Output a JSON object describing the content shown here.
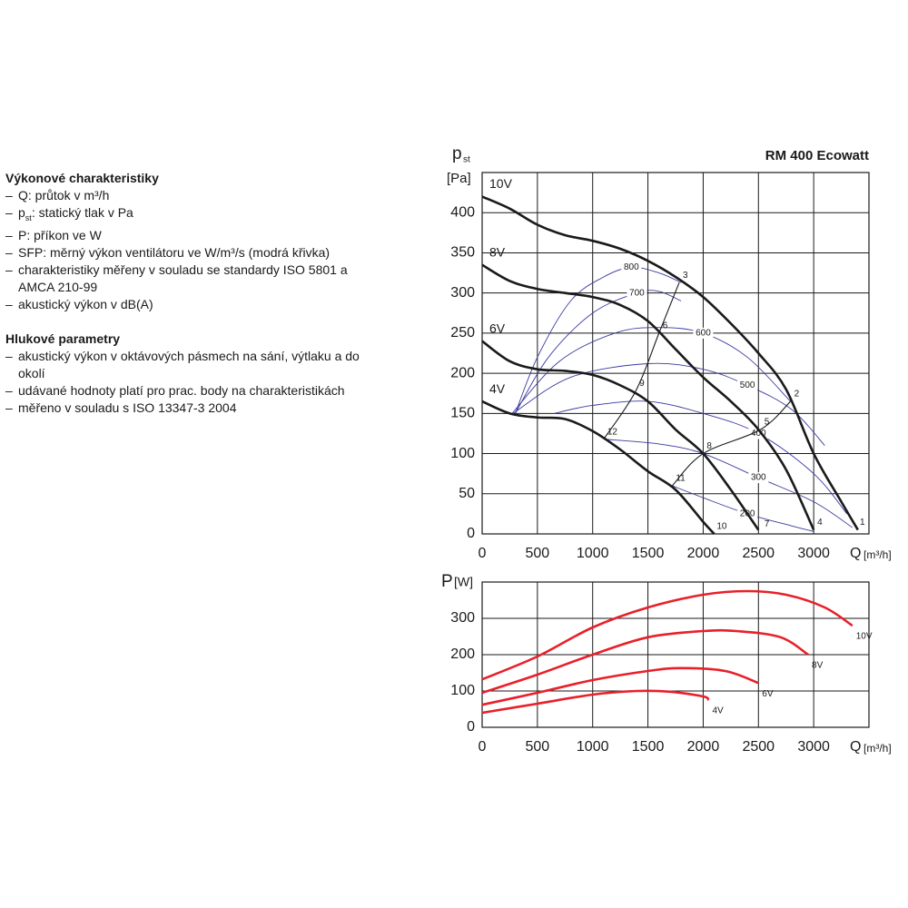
{
  "text": {
    "heading1": "Výkonové charakteristiky",
    "items1": [
      {
        "text": "Q: průtok v m³/h"
      },
      {
        "main": "p",
        "sub": "st",
        "rest": ": statický tlak v Pa"
      },
      {
        "text": "P: příkon ve W"
      },
      {
        "text": "SFP: měrný výkon ventilátoru ve W/m³/s (modrá křivka)"
      },
      {
        "text": "charakteristiky měřeny v souladu se standardy ISO 5801 a AMCA 210-99"
      },
      {
        "text": "akustický výkon v dB(A)"
      }
    ],
    "heading2": "Hlukové parametry",
    "items2": [
      {
        "text": "akustický výkon v oktávových pásmech na sání, výtlaku a do okolí"
      },
      {
        "text": "udávané hodnoty platí pro prac. body na charakteristikách"
      },
      {
        "text": "měřeno v souladu s ISO 13347-3 2004"
      }
    ]
  },
  "chart_data": [
    {
      "type": "line",
      "title": "RM 400 Ecowatt",
      "ylabel": "p",
      "ylabel_sub": "st",
      "yunit": "[Pa]",
      "xlabel": "Q",
      "xunit": "[m³/h]",
      "xlim": [
        0,
        3500
      ],
      "ylim": [
        0,
        450
      ],
      "xticks": [
        0,
        500,
        1000,
        1500,
        2000,
        2500,
        3000
      ],
      "yticks": [
        0,
        50,
        100,
        150,
        200,
        250,
        300,
        350,
        400
      ],
      "grid": true,
      "series": [
        {
          "name": "10V",
          "color": "#1a1a1a",
          "x": [
            0,
            250,
            500,
            750,
            1000,
            1250,
            1500,
            1750,
            2000,
            2250,
            2500,
            2750,
            3000,
            3250,
            3400
          ],
          "values": [
            420,
            405,
            385,
            372,
            365,
            355,
            340,
            320,
            295,
            262,
            225,
            180,
            100,
            40,
            5
          ]
        },
        {
          "name": "8V",
          "color": "#1a1a1a",
          "x": [
            0,
            250,
            500,
            750,
            1000,
            1250,
            1500,
            1750,
            2000,
            2250,
            2500,
            2750,
            3000
          ],
          "values": [
            335,
            315,
            305,
            300,
            295,
            285,
            265,
            230,
            195,
            165,
            130,
            80,
            5
          ]
        },
        {
          "name": "6V",
          "color": "#1a1a1a",
          "x": [
            0,
            250,
            500,
            750,
            1000,
            1250,
            1500,
            1750,
            2000,
            2250,
            2500
          ],
          "values": [
            240,
            215,
            205,
            203,
            198,
            185,
            165,
            130,
            100,
            55,
            5
          ]
        },
        {
          "name": "4V",
          "color": "#1a1a1a",
          "x": [
            0,
            250,
            500,
            750,
            1000,
            1250,
            1500,
            1750,
            2000,
            2100
          ],
          "values": [
            165,
            150,
            145,
            143,
            128,
            105,
            78,
            55,
            15,
            0
          ]
        }
      ],
      "sfp_curves": [
        {
          "name": "800",
          "color": "#3a3aa0",
          "x": [
            300,
            500,
            800,
            1100,
            1350,
            1600,
            1800
          ],
          "values": [
            150,
            220,
            290,
            320,
            332,
            325,
            313
          ]
        },
        {
          "name": "700",
          "color": "#3a3aa0",
          "x": [
            300,
            600,
            1000,
            1400,
            1600,
            1800
          ],
          "values": [
            150,
            220,
            275,
            300,
            302,
            290
          ]
        },
        {
          "name": "600",
          "color": "#3a3aa0",
          "x": [
            270,
            700,
            1200,
            1600,
            2000,
            2400,
            2790
          ],
          "values": [
            150,
            215,
            250,
            257,
            250,
            220,
            165
          ]
        },
        {
          "name": "500",
          "color": "#3a3aa0",
          "x": [
            280,
            800,
            1500,
            2000,
            2400,
            2800,
            3100
          ],
          "values": [
            150,
            195,
            212,
            205,
            185,
            155,
            110
          ]
        },
        {
          "name": "400",
          "color": "#3a3aa0",
          "x": [
            650,
            1000,
            1500,
            2000,
            2500,
            3000,
            3300
          ],
          "values": [
            150,
            160,
            165,
            150,
            125,
            75,
            25
          ]
        },
        {
          "name": "300",
          "color": "#3a3aa0",
          "x": [
            1100,
            1600,
            2000,
            2500,
            3000,
            3350
          ],
          "values": [
            118,
            112,
            100,
            70,
            40,
            8
          ]
        },
        {
          "name": "200",
          "color": "#3a3aa0",
          "x": [
            1720,
            2000,
            2400,
            2800,
            3000
          ],
          "values": [
            60,
            45,
            25,
            10,
            3
          ]
        }
      ],
      "system_curves": [
        {
          "color": "#1a1a1a",
          "x": [
            1100,
            1390,
            1600,
            1783
          ],
          "values": [
            118,
            178,
            250,
            313
          ]
        },
        {
          "color": "#1a1a1a",
          "x": [
            1720,
            2000,
            2520,
            2790
          ],
          "values": [
            60,
            100,
            130,
            165
          ]
        }
      ],
      "annotations": [
        {
          "label": "1",
          "x": 3385,
          "y": 5
        },
        {
          "label": "2",
          "x": 2790,
          "y": 165
        },
        {
          "label": "3",
          "x": 1783,
          "y": 313
        },
        {
          "label": "4",
          "x": 3000,
          "y": 5
        },
        {
          "label": "5",
          "x": 2520,
          "y": 130
        },
        {
          "label": "6",
          "x": 1600,
          "y": 250
        },
        {
          "label": "7",
          "x": 2520,
          "y": 3
        },
        {
          "label": "8",
          "x": 2000,
          "y": 100
        },
        {
          "label": "9",
          "x": 1390,
          "y": 178
        },
        {
          "label": "10",
          "x": 2090,
          "y": 0
        },
        {
          "label": "11",
          "x": 1720,
          "y": 60
        },
        {
          "label": "12",
          "x": 1100,
          "y": 118
        }
      ]
    },
    {
      "type": "line",
      "ylabel": "P",
      "yunit": "[W]",
      "xlabel": "Q",
      "xunit": "[m³/h]",
      "xlim": [
        0,
        3500
      ],
      "ylim": [
        0,
        400
      ],
      "xticks": [
        0,
        500,
        1000,
        1500,
        2000,
        2500,
        3000
      ],
      "yticks": [
        0,
        100,
        200,
        300
      ],
      "grid": true,
      "series": [
        {
          "name": "10V",
          "color": "#e8202a",
          "x": [
            0,
            500,
            1000,
            1500,
            2000,
            2400,
            2750,
            3100,
            3350
          ],
          "values": [
            132,
            195,
            275,
            330,
            365,
            375,
            365,
            330,
            280
          ]
        },
        {
          "name": "8V",
          "color": "#e8202a",
          "x": [
            0,
            500,
            1000,
            1500,
            2000,
            2300,
            2700,
            2950
          ],
          "values": [
            95,
            145,
            200,
            248,
            265,
            265,
            248,
            200
          ]
        },
        {
          "name": "6V",
          "color": "#e8202a",
          "x": [
            0,
            500,
            1000,
            1500,
            1800,
            2200,
            2500
          ],
          "values": [
            62,
            95,
            130,
            155,
            163,
            155,
            122
          ]
        },
        {
          "name": "4V",
          "color": "#e8202a",
          "x": [
            0,
            500,
            1000,
            1400,
            1700,
            2000,
            2050
          ],
          "values": [
            40,
            65,
            90,
            100,
            98,
            85,
            75
          ]
        }
      ]
    }
  ]
}
